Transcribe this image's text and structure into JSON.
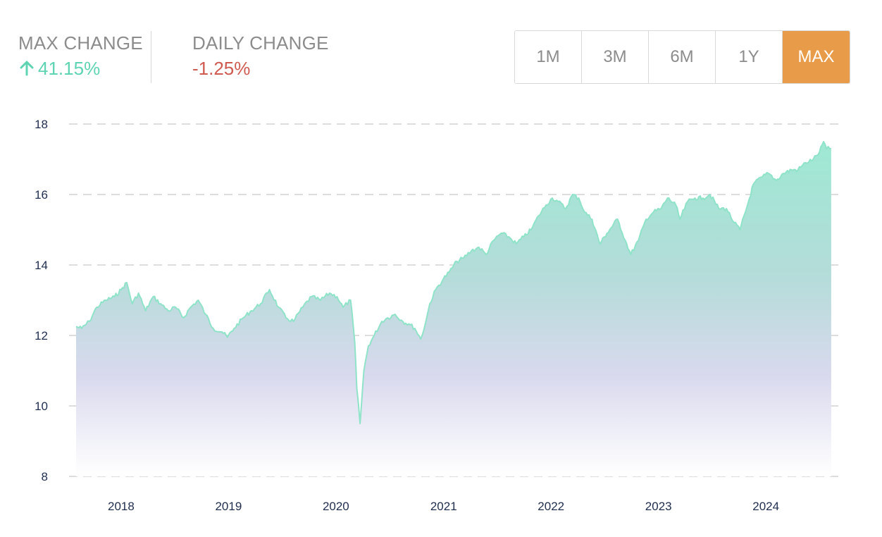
{
  "stats": {
    "max_change_label": "MAX CHANGE",
    "max_change_value": "41.15%",
    "max_change_direction": "up",
    "max_change_icon": "arrow-up-icon",
    "daily_change_label": "DAILY CHANGE",
    "daily_change_value": "-1.25%"
  },
  "range_buttons": [
    {
      "label": "1M",
      "active": false
    },
    {
      "label": "3M",
      "active": false
    },
    {
      "label": "6M",
      "active": false
    },
    {
      "label": "1Y",
      "active": false
    },
    {
      "label": "MAX",
      "active": true
    }
  ],
  "colors": {
    "up": "#5ed4b3",
    "down": "#cf5a50",
    "accent": "#e89b48",
    "line": "#8fe3c8",
    "area_top": "#9ee8d3",
    "area_mid": "#d9d9ee",
    "axis_text": "#1f2d4e",
    "grid": "#dddddd"
  },
  "chart_data": {
    "type": "area",
    "title": "",
    "xlabel": "",
    "ylabel": "",
    "ylim": [
      8,
      18
    ],
    "yticks": [
      "8",
      "10",
      "12",
      "14",
      "16",
      "18"
    ],
    "xlim": [
      "2017-08-01",
      "2024-08-15"
    ],
    "xticks": [
      "2018",
      "2019",
      "2020",
      "2021",
      "2022",
      "2023",
      "2024"
    ],
    "grid": "horizontal-dashed",
    "legend": "none",
    "series": [
      {
        "x": [
          "2017-08-01",
          "2017-08-20",
          "2017-09-15",
          "2017-10-10",
          "2017-11-10",
          "2017-12-10",
          "2018-01-01",
          "2018-01-20",
          "2018-02-08",
          "2018-03-01",
          "2018-03-25",
          "2018-04-20",
          "2018-05-15",
          "2018-06-10",
          "2018-07-05",
          "2018-08-01",
          "2018-08-25",
          "2018-09-20",
          "2018-10-15",
          "2018-11-10",
          "2018-12-10",
          "2018-12-28",
          "2019-01-20",
          "2019-02-20",
          "2019-03-20",
          "2019-04-20",
          "2019-05-20",
          "2019-06-20",
          "2019-07-15",
          "2019-08-10",
          "2019-09-10",
          "2019-10-10",
          "2019-11-10",
          "2019-12-10",
          "2020-01-05",
          "2020-01-25",
          "2020-02-20",
          "2020-03-05",
          "2020-03-12",
          "2020-03-23",
          "2020-04-05",
          "2020-04-20",
          "2020-05-10",
          "2020-06-05",
          "2020-06-25",
          "2020-07-20",
          "2020-08-15",
          "2020-09-10",
          "2020-09-25",
          "2020-10-15",
          "2020-10-30",
          "2020-11-15",
          "2020-12-05",
          "2020-12-31",
          "2021-01-20",
          "2021-02-15",
          "2021-03-10",
          "2021-04-05",
          "2021-05-01",
          "2021-05-25",
          "2021-06-20",
          "2021-07-15",
          "2021-08-10",
          "2021-09-05",
          "2021-09-30",
          "2021-10-25",
          "2021-11-20",
          "2021-12-15",
          "2022-01-05",
          "2022-01-25",
          "2022-02-20",
          "2022-03-15",
          "2022-04-05",
          "2022-04-25",
          "2022-05-20",
          "2022-06-16",
          "2022-07-10",
          "2022-08-15",
          "2022-09-10",
          "2022-09-29",
          "2022-10-25",
          "2022-11-20",
          "2022-12-15",
          "2023-01-10",
          "2023-02-01",
          "2023-03-01",
          "2023-03-15",
          "2023-04-10",
          "2023-05-05",
          "2023-06-01",
          "2023-06-25",
          "2023-07-25",
          "2023-08-20",
          "2023-09-15",
          "2023-10-05",
          "2023-10-27",
          "2023-11-20",
          "2023-12-20",
          "2024-01-10",
          "2024-02-05",
          "2024-03-01",
          "2024-03-28",
          "2024-04-19",
          "2024-05-15",
          "2024-06-10",
          "2024-07-01",
          "2024-07-15",
          "2024-07-25",
          "2024-08-10"
        ],
        "y": [
          12.25,
          12.2,
          12.4,
          12.8,
          13.0,
          13.1,
          13.3,
          13.5,
          12.9,
          13.2,
          12.7,
          13.1,
          12.9,
          12.7,
          12.8,
          12.5,
          12.8,
          13.0,
          12.6,
          12.2,
          12.1,
          11.95,
          12.2,
          12.5,
          12.7,
          12.9,
          13.3,
          12.8,
          12.5,
          12.4,
          12.8,
          13.1,
          13.0,
          13.2,
          13.1,
          12.8,
          13.0,
          11.8,
          10.5,
          9.5,
          11.0,
          11.7,
          12.0,
          12.4,
          12.5,
          12.6,
          12.4,
          12.3,
          12.2,
          11.9,
          12.3,
          12.9,
          13.3,
          13.6,
          13.8,
          14.1,
          14.2,
          14.4,
          14.5,
          14.3,
          14.7,
          14.9,
          14.8,
          14.6,
          14.8,
          15.0,
          15.4,
          15.7,
          15.9,
          15.8,
          15.6,
          16.0,
          15.9,
          15.5,
          15.3,
          14.6,
          14.9,
          15.3,
          14.7,
          14.3,
          14.7,
          15.3,
          15.5,
          15.6,
          15.9,
          15.7,
          15.3,
          15.8,
          15.9,
          15.9,
          16.0,
          15.6,
          15.6,
          15.2,
          15.0,
          15.6,
          16.3,
          16.5,
          16.6,
          16.4,
          16.6,
          16.7,
          16.7,
          16.9,
          17.0,
          17.2,
          17.5,
          17.3,
          17.3
        ]
      }
    ]
  }
}
